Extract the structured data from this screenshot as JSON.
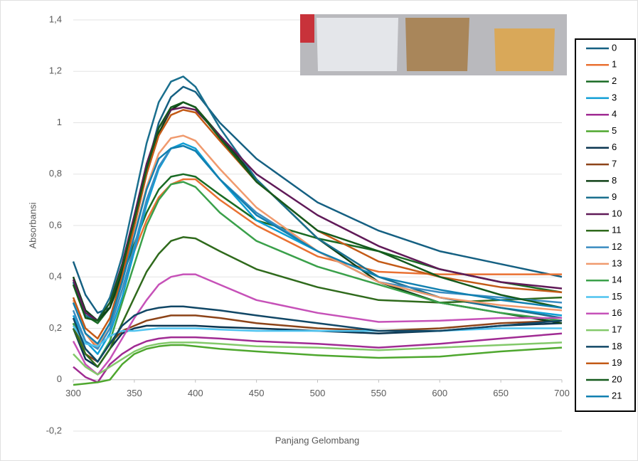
{
  "chart_data": {
    "type": "line",
    "x_label": "Panjang Gelombang",
    "y_label": "Absorbansi",
    "xlim": [
      300,
      700
    ],
    "xticks": [
      300,
      350,
      400,
      450,
      500,
      550,
      600,
      650,
      700
    ],
    "ylim": [
      -0.2,
      1.4
    ],
    "yticks": [
      {
        "value": -0.2,
        "label": "-0,2"
      },
      0,
      {
        "value": 0.2,
        "label": "0,2"
      },
      {
        "value": 0.4,
        "label": "0,4"
      },
      {
        "value": 0.6,
        "label": "0,6"
      },
      {
        "value": 0.8,
        "label": "0,8"
      },
      1,
      {
        "value": 1.2,
        "label": "1,2"
      },
      {
        "value": 1.4,
        "label": "1,4"
      }
    ],
    "grid": true,
    "legend": "right",
    "x": [
      300,
      310,
      320,
      330,
      340,
      350,
      360,
      370,
      380,
      390,
      400,
      420,
      450,
      500,
      550,
      600,
      650,
      700
    ],
    "series": [
      {
        "name": "0",
        "color": "#156082",
        "values": [
          0.46,
          0.33,
          0.26,
          0.28,
          0.4,
          0.6,
          0.82,
          1.0,
          1.1,
          1.14,
          1.12,
          1.0,
          0.86,
          0.69,
          0.58,
          0.5,
          0.45,
          0.4
        ]
      },
      {
        "name": "1",
        "color": "#e97132",
        "values": [
          0.3,
          0.18,
          0.12,
          0.2,
          0.35,
          0.5,
          0.62,
          0.71,
          0.76,
          0.78,
          0.78,
          0.7,
          0.6,
          0.48,
          0.42,
          0.41,
          0.41,
          0.41
        ]
      },
      {
        "name": "2",
        "color": "#196b24",
        "values": [
          0.38,
          0.25,
          0.22,
          0.28,
          0.4,
          0.53,
          0.65,
          0.74,
          0.79,
          0.8,
          0.79,
          0.72,
          0.62,
          0.55,
          0.5,
          0.43,
          0.38,
          0.34
        ]
      },
      {
        "name": "3",
        "color": "#0f9ed5",
        "values": [
          0.25,
          0.15,
          0.1,
          0.18,
          0.32,
          0.5,
          0.68,
          0.82,
          0.9,
          0.92,
          0.9,
          0.78,
          0.62,
          0.5,
          0.38,
          0.32,
          0.28,
          0.25
        ]
      },
      {
        "name": "4",
        "color": "#a02b93",
        "values": [
          0.05,
          0.01,
          -0.01,
          0.06,
          0.1,
          0.13,
          0.15,
          0.16,
          0.165,
          0.165,
          0.165,
          0.16,
          0.15,
          0.14,
          0.125,
          0.14,
          0.16,
          0.18
        ]
      },
      {
        "name": "5",
        "color": "#4ea72e",
        "values": [
          -0.02,
          -0.015,
          -0.01,
          0.0,
          0.06,
          0.1,
          0.12,
          0.13,
          0.135,
          0.135,
          0.13,
          0.12,
          0.11,
          0.095,
          0.085,
          0.09,
          0.11,
          0.125
        ]
      },
      {
        "name": "6",
        "color": "#0b3550",
        "values": [
          0.2,
          0.08,
          0.05,
          0.12,
          0.18,
          0.2,
          0.21,
          0.21,
          0.21,
          0.21,
          0.21,
          0.205,
          0.2,
          0.19,
          0.18,
          0.19,
          0.21,
          0.22
        ]
      },
      {
        "name": "7",
        "color": "#8c4318",
        "values": [
          0.22,
          0.1,
          0.07,
          0.14,
          0.19,
          0.21,
          0.23,
          0.24,
          0.25,
          0.25,
          0.25,
          0.24,
          0.22,
          0.2,
          0.19,
          0.2,
          0.22,
          0.23
        ]
      },
      {
        "name": "8",
        "color": "#0f4016",
        "values": [
          0.4,
          0.27,
          0.23,
          0.28,
          0.42,
          0.6,
          0.8,
          0.96,
          1.05,
          1.08,
          1.06,
          0.95,
          0.78,
          0.55,
          0.38,
          0.3,
          0.26,
          0.22
        ]
      },
      {
        "name": "9",
        "color": "#1a6f8e",
        "values": [
          0.38,
          0.25,
          0.23,
          0.32,
          0.48,
          0.7,
          0.92,
          1.08,
          1.16,
          1.18,
          1.14,
          0.98,
          0.78,
          0.55,
          0.4,
          0.32,
          0.28,
          0.24
        ]
      },
      {
        "name": "10",
        "color": "#601a58",
        "values": [
          0.39,
          0.26,
          0.23,
          0.3,
          0.45,
          0.64,
          0.84,
          0.98,
          1.05,
          1.06,
          1.05,
          0.95,
          0.8,
          0.64,
          0.52,
          0.43,
          0.38,
          0.355
        ]
      },
      {
        "name": "11",
        "color": "#2f6a1c",
        "values": [
          0.2,
          0.1,
          0.05,
          0.12,
          0.22,
          0.32,
          0.42,
          0.49,
          0.54,
          0.555,
          0.55,
          0.5,
          0.43,
          0.36,
          0.31,
          0.3,
          0.31,
          0.32
        ]
      },
      {
        "name": "12",
        "color": "#3a8cc1",
        "values": [
          0.27,
          0.15,
          0.12,
          0.2,
          0.35,
          0.52,
          0.7,
          0.83,
          0.9,
          0.91,
          0.89,
          0.78,
          0.65,
          0.5,
          0.38,
          0.34,
          0.32,
          0.3
        ]
      },
      {
        "name": "13",
        "color": "#f09a6e",
        "values": [
          0.31,
          0.18,
          0.13,
          0.22,
          0.38,
          0.57,
          0.75,
          0.88,
          0.94,
          0.95,
          0.93,
          0.82,
          0.67,
          0.5,
          0.38,
          0.32,
          0.29,
          0.27
        ]
      },
      {
        "name": "14",
        "color": "#3aa04a",
        "values": [
          0.22,
          0.12,
          0.07,
          0.15,
          0.3,
          0.45,
          0.6,
          0.7,
          0.76,
          0.77,
          0.75,
          0.65,
          0.54,
          0.44,
          0.37,
          0.3,
          0.26,
          0.23
        ]
      },
      {
        "name": "15",
        "color": "#4fc3ef",
        "values": [
          0.21,
          0.14,
          0.13,
          0.17,
          0.19,
          0.19,
          0.195,
          0.2,
          0.2,
          0.2,
          0.2,
          0.195,
          0.19,
          0.19,
          0.19,
          0.19,
          0.2,
          0.2
        ]
      },
      {
        "name": "16",
        "color": "#c651b8",
        "values": [
          0.15,
          0.06,
          0.02,
          0.08,
          0.16,
          0.24,
          0.31,
          0.37,
          0.4,
          0.41,
          0.41,
          0.37,
          0.31,
          0.26,
          0.225,
          0.23,
          0.24,
          0.24
        ]
      },
      {
        "name": "17",
        "color": "#83c96a",
        "values": [
          0.1,
          0.05,
          0.02,
          0.05,
          0.08,
          0.11,
          0.13,
          0.14,
          0.145,
          0.145,
          0.145,
          0.14,
          0.13,
          0.125,
          0.115,
          0.125,
          0.135,
          0.145
        ]
      },
      {
        "name": "18",
        "color": "#114766",
        "values": [
          0.24,
          0.12,
          0.07,
          0.14,
          0.21,
          0.25,
          0.27,
          0.28,
          0.285,
          0.285,
          0.28,
          0.27,
          0.25,
          0.22,
          0.19,
          0.19,
          0.21,
          0.23
        ]
      },
      {
        "name": "19",
        "color": "#c35a16",
        "values": [
          0.32,
          0.2,
          0.16,
          0.24,
          0.4,
          0.6,
          0.8,
          0.95,
          1.03,
          1.05,
          1.04,
          0.93,
          0.77,
          0.58,
          0.46,
          0.4,
          0.36,
          0.34
        ]
      },
      {
        "name": "20",
        "color": "#145a1d",
        "values": [
          0.37,
          0.24,
          0.23,
          0.3,
          0.44,
          0.62,
          0.82,
          0.98,
          1.06,
          1.08,
          1.06,
          0.94,
          0.77,
          0.58,
          0.5,
          0.4,
          0.33,
          0.28
        ]
      },
      {
        "name": "21",
        "color": "#1180b0",
        "values": [
          0.3,
          0.18,
          0.14,
          0.22,
          0.38,
          0.56,
          0.74,
          0.86,
          0.9,
          0.91,
          0.89,
          0.78,
          0.64,
          0.5,
          0.4,
          0.35,
          0.31,
          0.28
        ]
      }
    ]
  }
}
